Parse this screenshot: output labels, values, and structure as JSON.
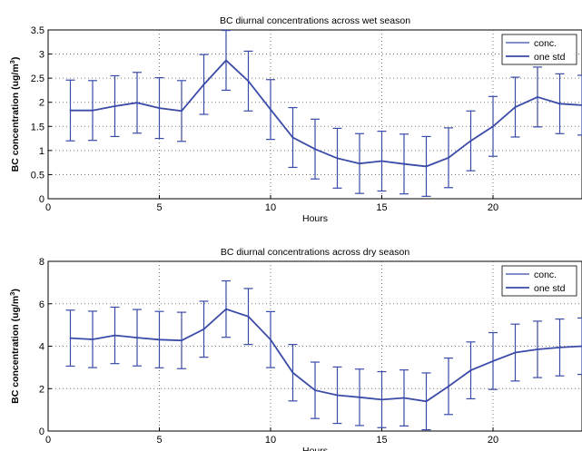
{
  "chart_data": [
    {
      "type": "line",
      "title": "BC diurnal concentrations across wet season",
      "xlabel": "Hours",
      "ylabel_main": "BC concentration (ug/m",
      "ylabel_sup": "3",
      "ylabel_tail": ")",
      "xlim": [
        0,
        24
      ],
      "ylim": [
        0,
        3.5
      ],
      "xticks": [
        0,
        5,
        10,
        15,
        20
      ],
      "yticks": [
        0,
        0.5,
        1,
        1.5,
        2,
        2.5,
        3,
        3.5
      ],
      "grid": true,
      "legend_position": "top-right",
      "legend": [
        "conc.",
        "one std"
      ],
      "x": [
        1,
        2,
        3,
        4,
        5,
        6,
        7,
        8,
        9,
        10,
        11,
        12,
        13,
        14,
        15,
        16,
        17,
        18,
        19,
        20,
        21,
        22,
        23,
        24
      ],
      "series": [
        {
          "name": "conc.",
          "values": [
            1.83,
            1.83,
            1.92,
            1.99,
            1.88,
            1.82,
            2.37,
            2.87,
            2.44,
            1.85,
            1.27,
            1.03,
            0.84,
            0.73,
            0.78,
            0.72,
            0.67,
            0.85,
            1.2,
            1.5,
            1.9,
            2.11,
            1.97,
            1.94
          ]
        },
        {
          "name": "one std",
          "values": [
            0.63,
            0.62,
            0.63,
            0.63,
            0.63,
            0.63,
            0.62,
            0.62,
            0.62,
            0.62,
            0.62,
            0.62,
            0.62,
            0.62,
            0.62,
            0.62,
            0.62,
            0.62,
            0.62,
            0.62,
            0.62,
            0.62,
            0.62,
            0.62
          ]
        }
      ]
    },
    {
      "type": "line",
      "title": "BC diurnal concentrations across dry season",
      "xlabel": "Hours",
      "ylabel_main": "BC concentration (ug/m",
      "ylabel_sup": "3",
      "ylabel_tail": ")",
      "xlim": [
        0,
        24
      ],
      "ylim": [
        0,
        8
      ],
      "xticks": [
        0,
        5,
        10,
        15,
        20
      ],
      "yticks": [
        0,
        2,
        4,
        6,
        8
      ],
      "grid": true,
      "legend_position": "top-right",
      "legend": [
        "conc.",
        "one std"
      ],
      "x": [
        1,
        2,
        3,
        4,
        5,
        6,
        7,
        8,
        9,
        10,
        11,
        12,
        13,
        14,
        15,
        16,
        17,
        18,
        19,
        20,
        21,
        22,
        23,
        24
      ],
      "series": [
        {
          "name": "conc.",
          "values": [
            4.38,
            4.32,
            4.51,
            4.4,
            4.31,
            4.27,
            4.8,
            5.75,
            5.4,
            4.31,
            2.75,
            1.92,
            1.69,
            1.59,
            1.48,
            1.56,
            1.4,
            2.11,
            2.86,
            3.3,
            3.7,
            3.85,
            3.94,
            4.0
          ]
        },
        {
          "name": "one std",
          "values": [
            1.32,
            1.33,
            1.33,
            1.33,
            1.33,
            1.33,
            1.32,
            1.33,
            1.32,
            1.32,
            1.33,
            1.33,
            1.33,
            1.33,
            1.32,
            1.32,
            1.34,
            1.33,
            1.34,
            1.34,
            1.34,
            1.33,
            1.34,
            1.33
          ]
        }
      ]
    }
  ]
}
